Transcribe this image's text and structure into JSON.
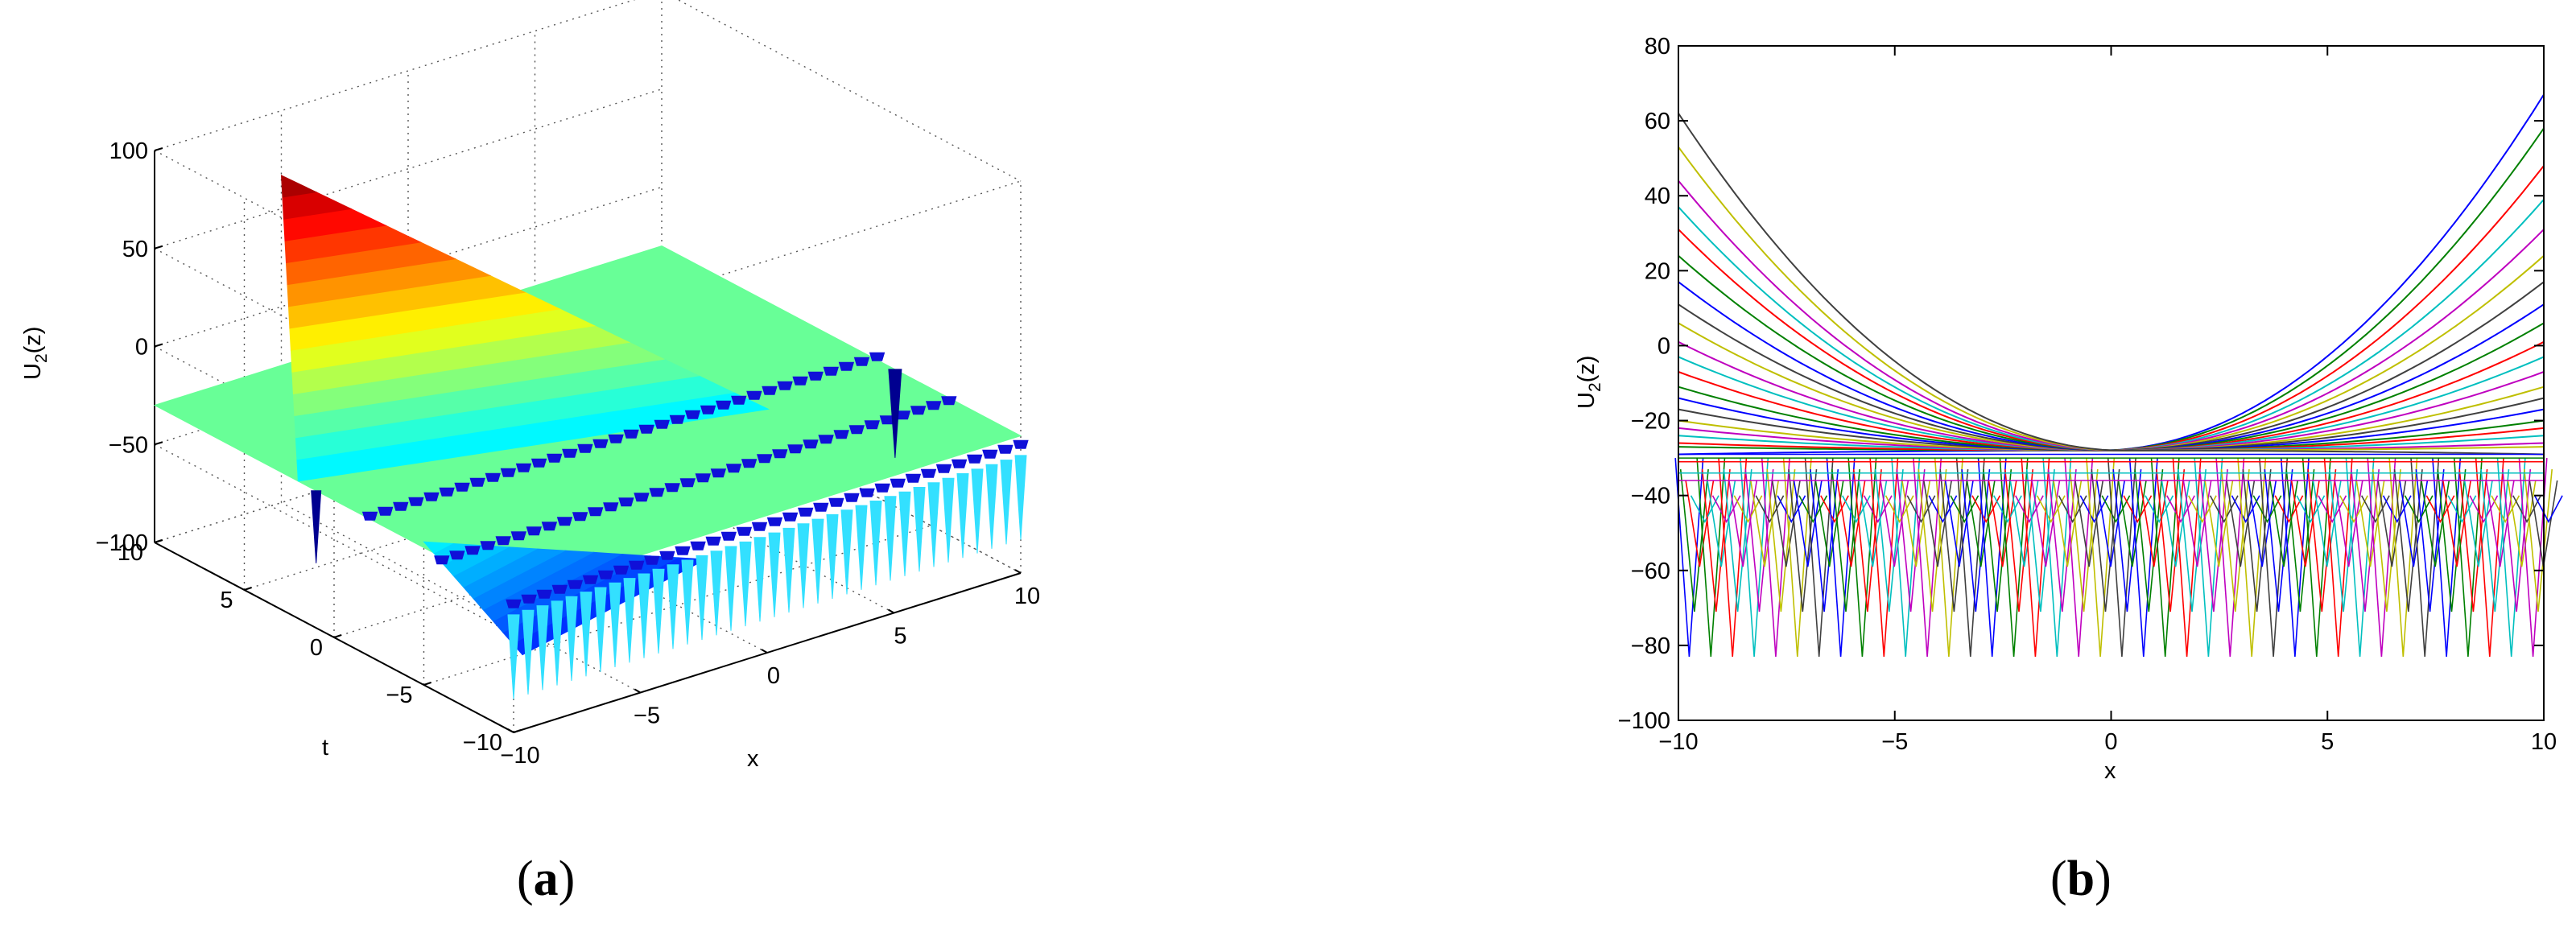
{
  "panel_a": {
    "caption_open": "(",
    "caption_letter": "a",
    "caption_close": ")",
    "zlabel": "U",
    "zlabel_sub": "2",
    "zlabel_arg": "(z)",
    "xlabel": "x",
    "tlabel": "t"
  },
  "panel_b": {
    "caption_open": "(",
    "caption_letter": "b",
    "caption_close": ")",
    "ylabel": "U",
    "ylabel_sub": "2",
    "ylabel_arg": "(z)",
    "xlabel": "x"
  },
  "chart_data": [
    {
      "type": "surface",
      "panel": "(a)",
      "xlabel": "x",
      "ylabel": "t",
      "zlabel": "U2(z)",
      "xlim": [
        -10,
        10
      ],
      "ylim": [
        -10,
        10
      ],
      "zlim": [
        -100,
        100
      ],
      "x_ticks": [
        -10,
        -5,
        0,
        5,
        10
      ],
      "t_ticks": [
        -10,
        -5,
        0,
        5,
        10
      ],
      "z_ticks": [
        -100,
        -50,
        0,
        50,
        100
      ],
      "colormap": "jet",
      "grid": true,
      "features": {
        "main_peak": {
          "x": -5,
          "t": 10,
          "z": 67
        },
        "secondary_peak": {
          "x": -10,
          "t": -5,
          "z": -27
        },
        "plateau_level": -30,
        "spike_min": -83
      }
    },
    {
      "type": "line",
      "panel": "(b)",
      "xlabel": "x",
      "ylabel": "U2(z)",
      "xlim": [
        -10,
        10
      ],
      "ylim": [
        -100,
        80
      ],
      "x_ticks": [
        -10,
        -5,
        0,
        5,
        10
      ],
      "y_ticks": [
        -100,
        -80,
        -60,
        -40,
        -20,
        0,
        20,
        40,
        60,
        80
      ],
      "grid": false,
      "color_cycle": [
        "#0000ff",
        "#008000",
        "#ff0000",
        "#00bfbf",
        "#bf00bf",
        "#bfbf00",
        "#404040"
      ],
      "curves": {
        "parabola_count": 21,
        "right_end_values": [
          67,
          58,
          48,
          39,
          31,
          24,
          17,
          11,
          6,
          1,
          -3,
          -7,
          -11,
          -14,
          -17,
          -20,
          -22,
          -24,
          -26,
          -27,
          -29
        ],
        "left_end_values": [
          -29,
          -27,
          -26,
          -24,
          -22,
          -20,
          -17,
          -14,
          -11,
          -7,
          -3,
          1,
          6,
          11,
          17,
          24,
          31,
          37,
          44,
          53,
          62
        ],
        "vertex_y": -28,
        "baseline_y": -30,
        "spike_min": -83,
        "spike_spacing_x": 0.5
      }
    }
  ]
}
